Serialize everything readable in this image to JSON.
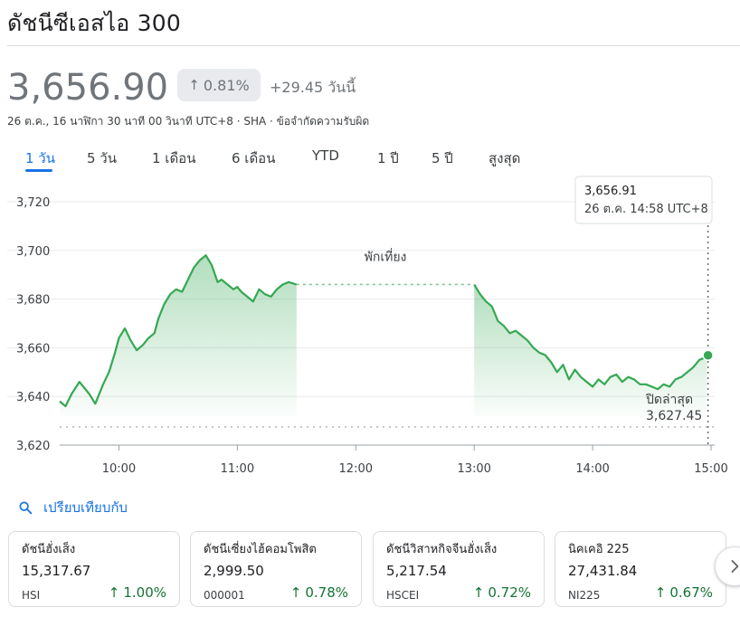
{
  "title": "ดัชนีซีเอสไอ 300",
  "price": "3,656.90",
  "change_pct": "0.81%",
  "change_abs": "+29.45 วันนี้",
  "meta": "26 ต.ค., 16 นาฬิกา 30 นาที 00 วินาที UTC+8 · SHA · ข้อจำกัดความรับผิด",
  "tabs": [
    {
      "label": "1 วัน",
      "active": true
    },
    {
      "label": "5 วัน"
    },
    {
      "label": "1 เดือน"
    },
    {
      "label": "6 เดือน"
    },
    {
      "label": "YTD"
    },
    {
      "label": "1 ปี"
    },
    {
      "label": "5 ปี"
    },
    {
      "label": "สูงสุด"
    }
  ],
  "chart_data": {
    "type": "line",
    "y_ticks": [
      "3,720",
      "3,700",
      "3,680",
      "3,660",
      "3,640",
      "3,620"
    ],
    "x_ticks": [
      "10:00",
      "11:00",
      "12:00",
      "13:00",
      "14:00",
      "15:00"
    ],
    "ylim": [
      3620,
      3720
    ],
    "break_label": "พักเที่ยง",
    "previous_close_label": "ปิดล่าสุด",
    "previous_close": "3,627.45",
    "previous_close_value": 3627.45,
    "tooltip": {
      "value": "3,656.91",
      "time": "26 ต.ค. 14:58 UTC+8"
    },
    "line_color": "#34a853",
    "morning": {
      "x": [
        "09:30",
        "09:33",
        "09:36",
        "09:40",
        "09:45",
        "09:48",
        "09:52",
        "09:55",
        "09:58",
        "10:00",
        "10:03",
        "10:06",
        "10:09",
        "10:12",
        "10:15",
        "10:18",
        "10:20",
        "10:23",
        "10:26",
        "10:29",
        "10:32",
        "10:35",
        "10:38",
        "10:41",
        "10:44",
        "10:47",
        "10:50",
        "10:52",
        "10:55",
        "10:58",
        "11:00",
        "11:02",
        "11:05",
        "11:08",
        "11:11",
        "11:14",
        "11:17",
        "11:20",
        "11:23",
        "11:26",
        "11:30"
      ],
      "y": [
        3638,
        3636,
        3641,
        3646,
        3641,
        3637,
        3645,
        3650,
        3658,
        3664,
        3668,
        3663,
        3659,
        3661,
        3664,
        3666,
        3672,
        3678,
        3682,
        3684,
        3683,
        3688,
        3693,
        3696,
        3698,
        3694,
        3687,
        3688,
        3686,
        3684,
        3685,
        3683,
        3681,
        3679,
        3684,
        3682,
        3681,
        3684,
        3686,
        3687,
        3686
      ]
    },
    "afternoon": {
      "x": [
        "13:00",
        "13:03",
        "13:06",
        "13:09",
        "13:12",
        "13:15",
        "13:18",
        "13:21",
        "13:24",
        "13:27",
        "13:30",
        "13:33",
        "13:36",
        "13:39",
        "13:42",
        "13:45",
        "13:48",
        "13:51",
        "13:54",
        "13:57",
        "14:00",
        "14:03",
        "14:06",
        "14:09",
        "14:12",
        "14:15",
        "14:18",
        "14:21",
        "14:24",
        "14:27",
        "14:30",
        "14:33",
        "14:36",
        "14:39",
        "14:42",
        "14:45",
        "14:48",
        "14:51",
        "14:54",
        "14:57",
        "14:58"
      ],
      "y": [
        3686,
        3682,
        3679,
        3677,
        3671,
        3669,
        3666,
        3667,
        3665,
        3663,
        3660,
        3658,
        3657,
        3654,
        3650,
        3653,
        3647,
        3651,
        3648,
        3646,
        3644,
        3647,
        3645,
        3648,
        3649,
        3646,
        3648,
        3647,
        3645,
        3645,
        3644,
        3643,
        3645,
        3644,
        3647,
        3648,
        3650,
        3652,
        3655,
        3656,
        3656.91
      ]
    },
    "break_level": 3686
  },
  "compare_label": "เปรียบเทียบกับ",
  "cards": [
    {
      "name": "ดัชนีฮั่งเส็ง",
      "value": "15,317.67",
      "ticker": "HSI",
      "change": "1.00%"
    },
    {
      "name": "ดัชนีเซี่ยงไฮ้คอมโพสิต",
      "value": "2,999.50",
      "ticker": "000001",
      "change": "0.78%"
    },
    {
      "name": "ดัชนีวิสาหกิจจีนฮั่งเส็ง",
      "value": "5,217.54",
      "ticker": "HSCEI",
      "change": "0.72%"
    },
    {
      "name": "นิคเคอิ 225",
      "value": "27,431.84",
      "ticker": "NI225",
      "change": "0.67%"
    }
  ],
  "icons": {
    "up": "↑",
    "search": "search-icon",
    "next": "chevron-right-icon"
  }
}
